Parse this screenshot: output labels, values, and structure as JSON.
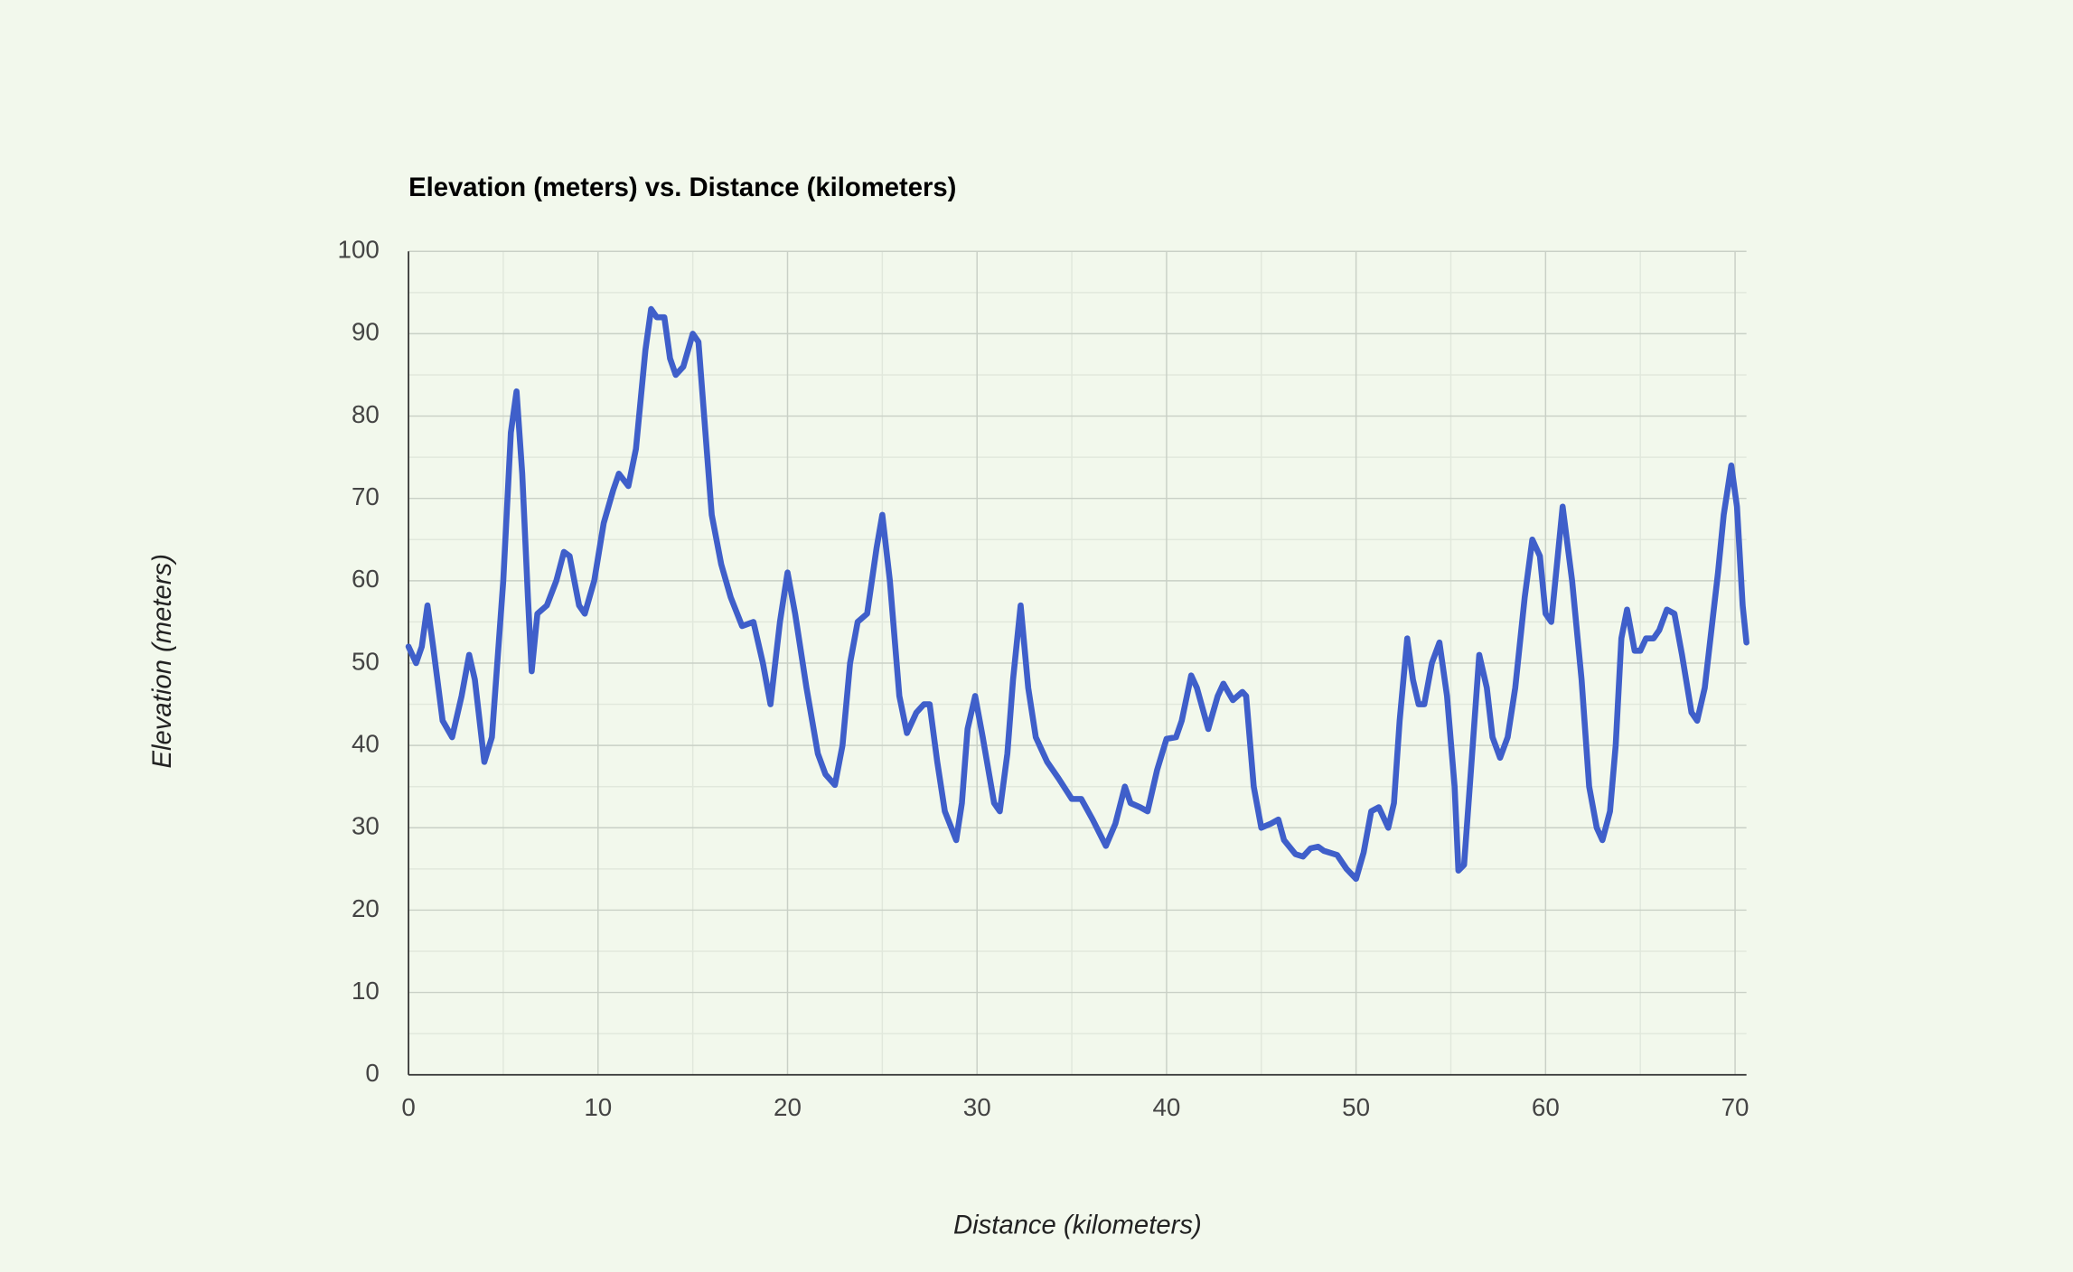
{
  "chart_data": {
    "type": "line",
    "title": "Elevation (meters) vs. Distance (kilometers)",
    "x_label": "Distance (kilometers)",
    "y_label": "Elevation (meters)",
    "xlim": [
      0,
      70.6
    ],
    "ylim": [
      0,
      100
    ],
    "xticks": [
      0,
      10,
      20,
      30,
      40,
      50,
      60,
      70
    ],
    "yticks": [
      0,
      10,
      20,
      30,
      40,
      50,
      60,
      70,
      80,
      90,
      100
    ],
    "grid": true,
    "x": [
      0,
      0.4,
      0.7,
      1.0,
      1.3,
      1.8,
      2.3,
      2.8,
      3.2,
      3.5,
      4.0,
      4.4,
      5.0,
      5.4,
      5.7,
      6.0,
      6.3,
      6.5,
      6.8,
      7.3,
      7.8,
      8.2,
      8.5,
      9.0,
      9.3,
      9.8,
      10.3,
      10.8,
      11.1,
      11.6,
      12.0,
      12.5,
      12.8,
      13.1,
      13.5,
      13.8,
      14.1,
      14.5,
      15.0,
      15.3,
      15.6,
      16.0,
      16.5,
      17.0,
      17.6,
      18.2,
      18.7,
      19.1,
      19.6,
      20.0,
      20.4,
      21.0,
      21.6,
      22.0,
      22.5,
      22.9,
      23.3,
      23.7,
      24.2,
      24.7,
      25.0,
      25.4,
      25.9,
      26.3,
      26.8,
      27.2,
      27.5,
      27.9,
      28.3,
      28.9,
      29.2,
      29.5,
      29.9,
      30.3,
      30.9,
      31.2,
      31.6,
      31.9,
      32.3,
      32.7,
      33.1,
      33.7,
      34.3,
      35.0,
      35.5,
      36.1,
      36.8,
      37.3,
      37.8,
      38.1,
      38.6,
      39.0,
      39.5,
      40.0,
      40.5,
      40.8,
      41.3,
      41.6,
      42.2,
      42.7,
      43.0,
      43.5,
      44.0,
      44.2,
      44.6,
      45.0,
      45.5,
      45.9,
      46.2,
      46.8,
      47.2,
      47.6,
      48.0,
      48.3,
      49.0,
      49.5,
      50.0,
      50.4,
      50.8,
      51.2,
      51.7,
      52.0,
      52.3,
      52.7,
      53.0,
      53.3,
      53.6,
      54.0,
      54.4,
      54.8,
      55.2,
      55.4,
      55.7,
      56.0,
      56.5,
      56.9,
      57.2,
      57.6,
      58.0,
      58.4,
      58.9,
      59.3,
      59.7,
      60.0,
      60.3,
      60.9,
      61.4,
      61.9,
      62.3,
      62.7,
      63.0,
      63.4,
      63.7,
      64.0,
      64.3,
      64.7,
      65.0,
      65.3,
      65.7,
      66.0,
      66.4,
      66.8,
      67.2,
      67.7,
      68.0,
      68.4,
      68.8,
      69.1,
      69.4,
      69.8,
      70.1,
      70.4,
      70.6
    ],
    "series": [
      {
        "name": "Elevation",
        "color": "#3f5fca",
        "values": [
          52,
          50,
          52,
          57,
          52,
          43,
          41,
          46,
          51,
          48,
          38,
          41,
          60,
          78,
          83,
          73,
          58,
          49,
          56,
          57,
          60,
          63.5,
          63,
          57,
          56,
          60,
          67,
          71,
          73,
          71.5,
          76,
          88,
          93,
          92,
          92,
          87,
          85,
          86,
          90,
          89,
          80,
          68,
          62,
          58,
          54.5,
          55,
          50,
          45,
          55,
          61,
          56,
          47,
          39,
          36.5,
          35.2,
          40,
          50,
          55,
          56,
          64,
          68,
          60,
          46,
          41.5,
          44,
          45,
          45,
          38,
          32,
          28.5,
          33,
          42,
          46,
          41,
          33,
          32,
          39,
          48,
          57,
          47,
          41,
          38,
          36,
          33.5,
          33.5,
          31,
          27.8,
          30.5,
          35,
          33,
          32.5,
          32,
          37,
          40.8,
          41,
          43,
          48.5,
          47,
          42,
          46,
          47.5,
          45.5,
          46.5,
          46,
          35,
          30,
          30.5,
          31,
          28.5,
          26.8,
          26.5,
          27.5,
          27.7,
          27.2,
          26.7,
          25,
          23.8,
          27,
          32,
          32.5,
          30,
          33,
          43,
          53,
          48,
          45,
          45,
          50,
          52.5,
          46,
          35,
          24.8,
          25.5,
          35,
          51,
          47,
          41,
          38.5,
          41,
          47,
          58,
          65,
          63,
          56,
          55,
          69,
          60,
          48,
          35,
          30,
          28.5,
          32,
          40,
          53,
          56.5,
          51.5,
          51.5,
          53,
          53,
          54,
          56.5,
          56,
          51,
          44,
          43,
          47,
          55,
          61,
          68,
          74,
          69,
          57,
          52.5
        ]
      }
    ]
  }
}
